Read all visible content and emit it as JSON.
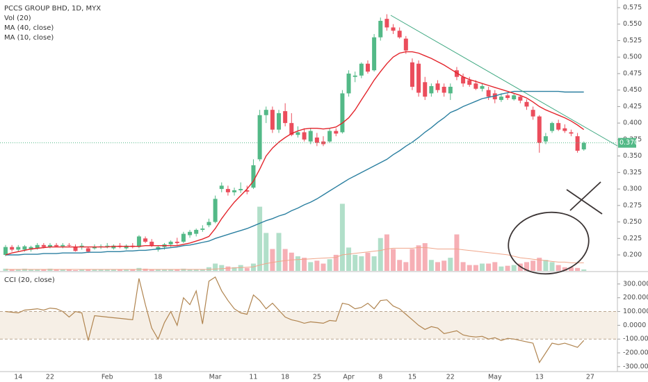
{
  "chart_data": [
    {
      "type": "candlestick",
      "title": "PCCS GROUP BHD, 1D, MYX",
      "categories": [
        null,
        null,
        "14",
        null,
        null,
        null,
        null,
        "22",
        null,
        null,
        null,
        null,
        null,
        null,
        null,
        null,
        "Feb",
        null,
        null,
        null,
        null,
        null,
        null,
        null,
        "18",
        null,
        null,
        null,
        null,
        null,
        null,
        null,
        null,
        "Mar",
        null,
        null,
        null,
        null,
        null,
        "11",
        null,
        null,
        null,
        null,
        "18",
        null,
        null,
        null,
        null,
        "25",
        null,
        null,
        null,
        null,
        "Apr",
        null,
        null,
        null,
        null,
        "8",
        null,
        null,
        null,
        null,
        "15",
        null,
        null,
        null,
        null,
        null,
        "22",
        null,
        null,
        null,
        null,
        null,
        null,
        "May",
        null,
        null,
        null,
        null,
        null,
        null,
        "13",
        null,
        null,
        null,
        null,
        null,
        null,
        null,
        "27"
      ],
      "candles": [
        [
          0.2,
          0.215,
          0.198,
          0.212
        ],
        [
          0.212,
          0.215,
          0.205,
          0.208
        ],
        [
          0.208,
          0.215,
          0.205,
          0.212
        ],
        [
          0.208,
          0.215,
          0.205,
          0.213
        ],
        [
          0.208,
          0.214,
          0.205,
          0.212
        ],
        [
          0.21,
          0.218,
          0.208,
          0.215
        ],
        [
          0.215,
          0.218,
          0.21,
          0.212
        ],
        [
          0.212,
          0.218,
          0.21,
          0.215
        ],
        [
          0.215,
          0.218,
          0.212,
          0.213
        ],
        [
          0.213,
          0.218,
          0.21,
          0.215
        ],
        [
          0.215,
          0.218,
          0.212,
          0.214
        ],
        [
          0.212,
          0.216,
          0.205,
          0.206
        ],
        [
          0.212,
          0.218,
          0.208,
          0.214
        ],
        [
          0.21,
          0.212,
          0.203,
          0.205
        ],
        [
          0.21,
          0.216,
          0.208,
          0.212
        ],
        [
          0.212,
          0.216,
          0.209,
          0.213
        ],
        [
          0.213,
          0.218,
          0.21,
          0.214
        ],
        [
          0.21,
          0.216,
          0.208,
          0.214
        ],
        [
          0.214,
          0.218,
          0.21,
          0.212
        ],
        [
          0.21,
          0.216,
          0.208,
          0.214
        ],
        [
          0.214,
          0.218,
          0.21,
          0.212
        ],
        [
          0.212,
          0.23,
          0.21,
          0.228
        ],
        [
          0.225,
          0.228,
          0.218,
          0.22
        ],
        [
          0.22,
          0.224,
          0.212,
          0.214
        ],
        [
          0.208,
          0.214,
          0.205,
          0.212
        ],
        [
          0.212,
          0.218,
          0.208,
          0.216
        ],
        [
          0.216,
          0.222,
          0.212,
          0.22
        ],
        [
          0.22,
          0.226,
          0.215,
          0.218
        ],
        [
          0.22,
          0.235,
          0.218,
          0.232
        ],
        [
          0.23,
          0.238,
          0.226,
          0.235
        ],
        [
          0.232,
          0.24,
          0.228,
          0.238
        ],
        [
          0.238,
          0.245,
          0.235,
          0.24
        ],
        [
          0.245,
          0.255,
          0.242,
          0.25
        ],
        [
          0.25,
          0.29,
          0.248,
          0.285
        ],
        [
          0.3,
          0.31,
          0.295,
          0.305
        ],
        [
          0.3,
          0.305,
          0.29,
          0.295
        ],
        [
          0.295,
          0.302,
          0.29,
          0.298
        ],
        [
          0.298,
          0.31,
          0.294,
          0.3
        ],
        [
          0.298,
          0.305,
          0.292,
          0.296
        ],
        [
          0.302,
          0.345,
          0.3,
          0.336
        ],
        [
          0.345,
          0.42,
          0.342,
          0.412
        ],
        [
          0.412,
          0.425,
          0.4,
          0.42
        ],
        [
          0.42,
          0.425,
          0.385,
          0.39
        ],
        [
          0.39,
          0.42,
          0.385,
          0.415
        ],
        [
          0.418,
          0.43,
          0.395,
          0.4
        ],
        [
          0.4,
          0.415,
          0.38,
          0.382
        ],
        [
          0.382,
          0.395,
          0.378,
          0.386
        ],
        [
          0.386,
          0.392,
          0.372,
          0.375
        ],
        [
          0.372,
          0.392,
          0.368,
          0.388
        ],
        [
          0.378,
          0.385,
          0.365,
          0.37
        ],
        [
          0.372,
          0.38,
          0.365,
          0.368
        ],
        [
          0.372,
          0.392,
          0.37,
          0.388
        ],
        [
          0.388,
          0.392,
          0.38,
          0.384
        ],
        [
          0.386,
          0.45,
          0.384,
          0.445
        ],
        [
          0.445,
          0.48,
          0.44,
          0.475
        ],
        [
          0.47,
          0.478,
          0.462,
          0.472
        ],
        [
          0.472,
          0.492,
          0.468,
          0.49
        ],
        [
          0.49,
          0.495,
          0.475,
          0.478
        ],
        [
          0.48,
          0.535,
          0.478,
          0.53
        ],
        [
          0.53,
          0.56,
          0.525,
          0.555
        ],
        [
          0.558,
          0.565,
          0.54,
          0.545
        ],
        [
          0.545,
          0.55,
          0.535,
          0.54
        ],
        [
          0.54,
          0.545,
          0.528,
          0.53
        ],
        [
          0.528,
          0.532,
          0.505,
          0.51
        ],
        [
          0.492,
          0.498,
          0.45,
          0.455
        ],
        [
          0.49,
          0.495,
          0.44,
          0.446
        ],
        [
          0.462,
          0.47,
          0.435,
          0.44
        ],
        [
          0.445,
          0.46,
          0.44,
          0.456
        ],
        [
          0.46,
          0.465,
          0.446,
          0.45
        ],
        [
          0.455,
          0.46,
          0.44,
          0.446
        ],
        [
          0.445,
          0.46,
          0.435,
          0.455
        ],
        [
          0.48,
          0.485,
          0.465,
          0.47
        ],
        [
          0.47,
          0.475,
          0.455,
          0.46
        ],
        [
          0.465,
          0.47,
          0.455,
          0.458
        ],
        [
          0.46,
          0.465,
          0.45,
          0.452
        ],
        [
          0.452,
          0.46,
          0.448,
          0.456
        ],
        [
          0.45,
          0.455,
          0.435,
          0.44
        ],
        [
          0.445,
          0.45,
          0.43,
          0.436
        ],
        [
          0.435,
          0.445,
          0.432,
          0.44
        ],
        [
          0.442,
          0.445,
          0.435,
          0.438
        ],
        [
          0.436,
          0.445,
          0.434,
          0.442
        ],
        [
          0.44,
          0.442,
          0.43,
          0.434
        ],
        [
          0.432,
          0.436,
          0.42,
          0.425
        ],
        [
          0.42,
          0.425,
          0.405,
          0.41
        ],
        [
          0.41,
          0.412,
          0.355,
          0.37
        ],
        [
          0.372,
          0.385,
          0.368,
          0.38
        ],
        [
          0.388,
          0.402,
          0.385,
          0.4
        ],
        [
          0.4,
          0.405,
          0.388,
          0.39
        ],
        [
          0.392,
          0.398,
          0.385,
          0.388
        ],
        [
          0.386,
          0.39,
          0.38,
          0.384
        ],
        [
          0.38,
          0.385,
          0.355,
          0.358
        ],
        [
          0.36,
          0.372,
          0.358,
          0.37
        ],
        null
      ],
      "up_color": "#53b987",
      "down_color": "#eb4d5c",
      "ylim": [
        0.1758,
        0.5866
      ],
      "yticks": [
        {
          "value": 0.2,
          "label": "0.200"
        },
        {
          "value": 0.225,
          "label": "0.225"
        },
        {
          "value": 0.25,
          "label": "0.250"
        },
        {
          "value": 0.275,
          "label": "0.275"
        },
        {
          "value": 0.3,
          "label": "0.300"
        },
        {
          "value": 0.325,
          "label": "0.325"
        },
        {
          "value": 0.35,
          "label": "0.350"
        },
        {
          "value": 0.375,
          "label": "0.375"
        },
        {
          "value": 0.4,
          "label": "0.400"
        },
        {
          "value": 0.425,
          "label": "0.425"
        },
        {
          "value": 0.45,
          "label": "0.450"
        },
        {
          "value": 0.475,
          "label": "0.475"
        },
        {
          "value": 0.5,
          "label": "0.500"
        },
        {
          "value": 0.525,
          "label": "0.525"
        },
        {
          "value": 0.55,
          "label": "0.550"
        },
        {
          "value": 0.575,
          "label": "0.575"
        }
      ],
      "last_price": {
        "value": 0.37,
        "label": "0.370"
      },
      "series": [
        {
          "name": "MA (40, close)",
          "color": "#2a7fa0",
          "values": [
            0.2,
            0.2,
            0.2,
            0.201,
            0.201,
            0.201,
            0.202,
            0.202,
            0.202,
            0.203,
            0.203,
            0.203,
            0.203,
            0.204,
            0.204,
            0.204,
            0.205,
            0.205,
            0.205,
            0.206,
            0.206,
            0.207,
            0.207,
            0.208,
            0.209,
            0.21,
            0.211,
            0.212,
            0.214,
            0.215,
            0.217,
            0.219,
            0.221,
            0.225,
            0.228,
            0.231,
            0.234,
            0.237,
            0.24,
            0.244,
            0.248,
            0.252,
            0.255,
            0.259,
            0.262,
            0.267,
            0.271,
            0.276,
            0.28,
            0.285,
            0.291,
            0.297,
            0.303,
            0.309,
            0.315,
            0.32,
            0.325,
            0.33,
            0.335,
            0.34,
            0.345,
            0.352,
            0.358,
            0.365,
            0.371,
            0.378,
            0.386,
            0.393,
            0.401,
            0.408,
            0.416,
            0.42,
            0.425,
            0.429,
            0.433,
            0.437,
            0.439,
            0.441,
            0.444,
            0.446,
            0.448,
            0.448,
            0.448,
            0.448,
            0.448,
            0.448,
            0.448,
            0.448,
            0.447,
            0.447,
            0.447,
            0.447,
            null
          ]
        },
        {
          "name": "MA (10, close)",
          "color": "#e3242b",
          "values": [
            0.2,
            0.203,
            0.205,
            0.207,
            0.209,
            0.21,
            0.211,
            0.212,
            0.212,
            0.212,
            0.212,
            0.212,
            0.212,
            0.212,
            0.212,
            0.212,
            0.212,
            0.213,
            0.213,
            0.213,
            0.213,
            0.213,
            0.214,
            0.214,
            0.214,
            0.214,
            0.214,
            0.214,
            0.216,
            0.218,
            0.221,
            0.224,
            0.228,
            0.24,
            0.255,
            0.268,
            0.28,
            0.29,
            0.3,
            0.312,
            0.33,
            0.35,
            0.362,
            0.371,
            0.378,
            0.384,
            0.388,
            0.391,
            0.392,
            0.392,
            0.391,
            0.392,
            0.394,
            0.4,
            0.408,
            0.42,
            0.435,
            0.45,
            0.465,
            0.478,
            0.49,
            0.5,
            0.506,
            0.508,
            0.508,
            0.506,
            0.502,
            0.498,
            0.493,
            0.488,
            0.482,
            0.476,
            0.47,
            0.466,
            0.463,
            0.46,
            0.457,
            0.454,
            0.451,
            0.448,
            0.445,
            0.442,
            0.438,
            0.432,
            0.425,
            0.42,
            0.416,
            0.412,
            0.408,
            0.403,
            0.397,
            0.39,
            null
          ]
        }
      ],
      "volume": {
        "name": "Vol (20)",
        "ylim": [
          0,
          100
        ],
        "ma_color": "#f0a58a",
        "values": [
          3,
          2,
          2,
          3,
          2,
          2,
          2,
          3,
          2,
          2,
          2,
          1,
          2,
          2,
          2,
          2,
          2,
          2,
          2,
          2,
          2,
          4,
          3,
          2,
          2,
          2,
          2,
          2,
          3,
          2,
          2,
          2,
          5,
          10,
          8,
          6,
          5,
          8,
          4,
          10,
          88,
          52,
          30,
          52,
          30,
          25,
          20,
          18,
          12,
          14,
          10,
          16,
          22,
          92,
          32,
          22,
          20,
          25,
          20,
          45,
          50,
          30,
          15,
          12,
          30,
          35,
          38,
          15,
          12,
          14,
          18,
          50,
          12,
          8,
          8,
          10,
          10,
          12,
          6,
          7,
          8,
          10,
          12,
          14,
          18,
          15,
          12,
          8,
          5,
          5,
          4,
          2,
          null
        ],
        "ma_values": [
          2,
          2,
          2,
          2,
          2,
          2,
          2,
          2,
          2,
          2,
          2,
          2,
          2,
          2,
          2,
          2,
          2,
          2,
          2,
          2,
          2,
          2,
          2,
          2,
          2,
          2,
          2,
          2,
          2,
          2,
          2,
          2,
          2,
          2.5,
          3,
          3.5,
          4,
          4.5,
          5,
          5.5,
          8,
          10,
          11.5,
          13,
          14,
          15,
          15.5,
          16,
          16.5,
          17,
          17.5,
          18,
          18.5,
          22,
          23,
          24,
          25,
          26,
          27,
          28,
          30,
          31,
          31,
          31,
          31,
          32,
          32,
          31,
          30,
          30,
          30,
          30,
          29,
          28,
          27,
          26,
          25,
          24,
          23,
          22,
          20,
          18,
          17,
          16,
          15,
          14,
          13,
          12,
          12,
          11,
          11,
          11,
          null
        ]
      }
    },
    {
      "type": "line",
      "title": "CCI (20, close)",
      "color": "#b0844f",
      "band": [
        -100,
        100
      ],
      "ylim": [
        -336,
        380
      ],
      "yticks": [
        {
          "value": 300,
          "label": "300.0000"
        },
        {
          "value": 200,
          "label": "200.0000"
        },
        {
          "value": 100,
          "label": "100.0000"
        },
        {
          "value": 0,
          "label": "0.0000"
        },
        {
          "value": -100,
          "label": "-100.0000"
        },
        {
          "value": -200,
          "label": "-200.0000"
        },
        {
          "value": -300,
          "label": "-300.0000"
        }
      ],
      "values": [
        100,
        95,
        90,
        110,
        115,
        120,
        110,
        125,
        120,
        100,
        60,
        100,
        90,
        -110,
        70,
        65,
        60,
        55,
        50,
        45,
        40,
        340,
        150,
        -20,
        -100,
        20,
        100,
        0,
        200,
        150,
        250,
        10,
        320,
        350,
        250,
        180,
        120,
        90,
        80,
        220,
        180,
        120,
        160,
        110,
        60,
        40,
        30,
        15,
        25,
        20,
        15,
        35,
        30,
        160,
        150,
        120,
        130,
        160,
        120,
        180,
        185,
        140,
        120,
        80,
        40,
        0,
        -30,
        -10,
        -20,
        -60,
        -50,
        -40,
        -70,
        -80,
        -85,
        -80,
        -100,
        -90,
        -110,
        -95,
        -100,
        -110,
        -120,
        -130,
        -270,
        -200,
        -130,
        -140,
        -130,
        -145,
        -160,
        -110,
        null
      ]
    }
  ]
}
